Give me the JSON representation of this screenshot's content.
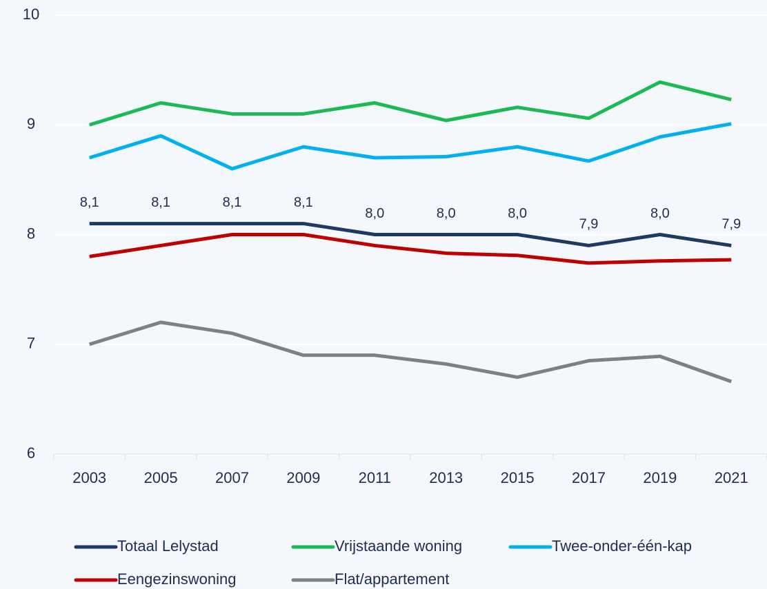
{
  "chart_data": {
    "type": "line",
    "categories": [
      "2003",
      "2005",
      "2007",
      "2009",
      "2011",
      "2013",
      "2015",
      "2017",
      "2019",
      "2021"
    ],
    "series": [
      {
        "name": "Totaal Lelystad",
        "color": "#1f3864",
        "values": [
          8.1,
          8.1,
          8.1,
          8.1,
          8.0,
          8.0,
          8.0,
          7.9,
          8.0,
          7.9
        ],
        "value_labels": [
          "8,1",
          "8,1",
          "8,1",
          "8,1",
          "8,0",
          "8,0",
          "8,0",
          "7,9",
          "8,0",
          "7,9"
        ]
      },
      {
        "name": "Vrijstaande woning",
        "color": "#1db954",
        "values": [
          9.0,
          9.2,
          9.1,
          9.1,
          9.2,
          9.04,
          9.16,
          9.06,
          9.39,
          9.23
        ]
      },
      {
        "name": "Twee-onder-één-kap",
        "color": "#00b0f0",
        "values": [
          8.7,
          8.9,
          8.6,
          8.8,
          8.7,
          8.71,
          8.8,
          8.67,
          8.89,
          9.01
        ]
      },
      {
        "name": "Eengezinswoning",
        "color": "#c00000",
        "values": [
          7.8,
          7.9,
          8.0,
          8.0,
          7.9,
          7.83,
          7.81,
          7.74,
          7.76,
          7.77
        ]
      },
      {
        "name": "Flat/appartement",
        "color": "#808080",
        "values": [
          7.0,
          7.2,
          7.1,
          6.9,
          6.9,
          6.82,
          6.7,
          6.85,
          6.89,
          6.66
        ]
      }
    ],
    "ylim": [
      6,
      10
    ],
    "yticks": [
      6,
      7,
      8,
      9,
      10
    ],
    "grid": true,
    "legend": "bottom"
  }
}
